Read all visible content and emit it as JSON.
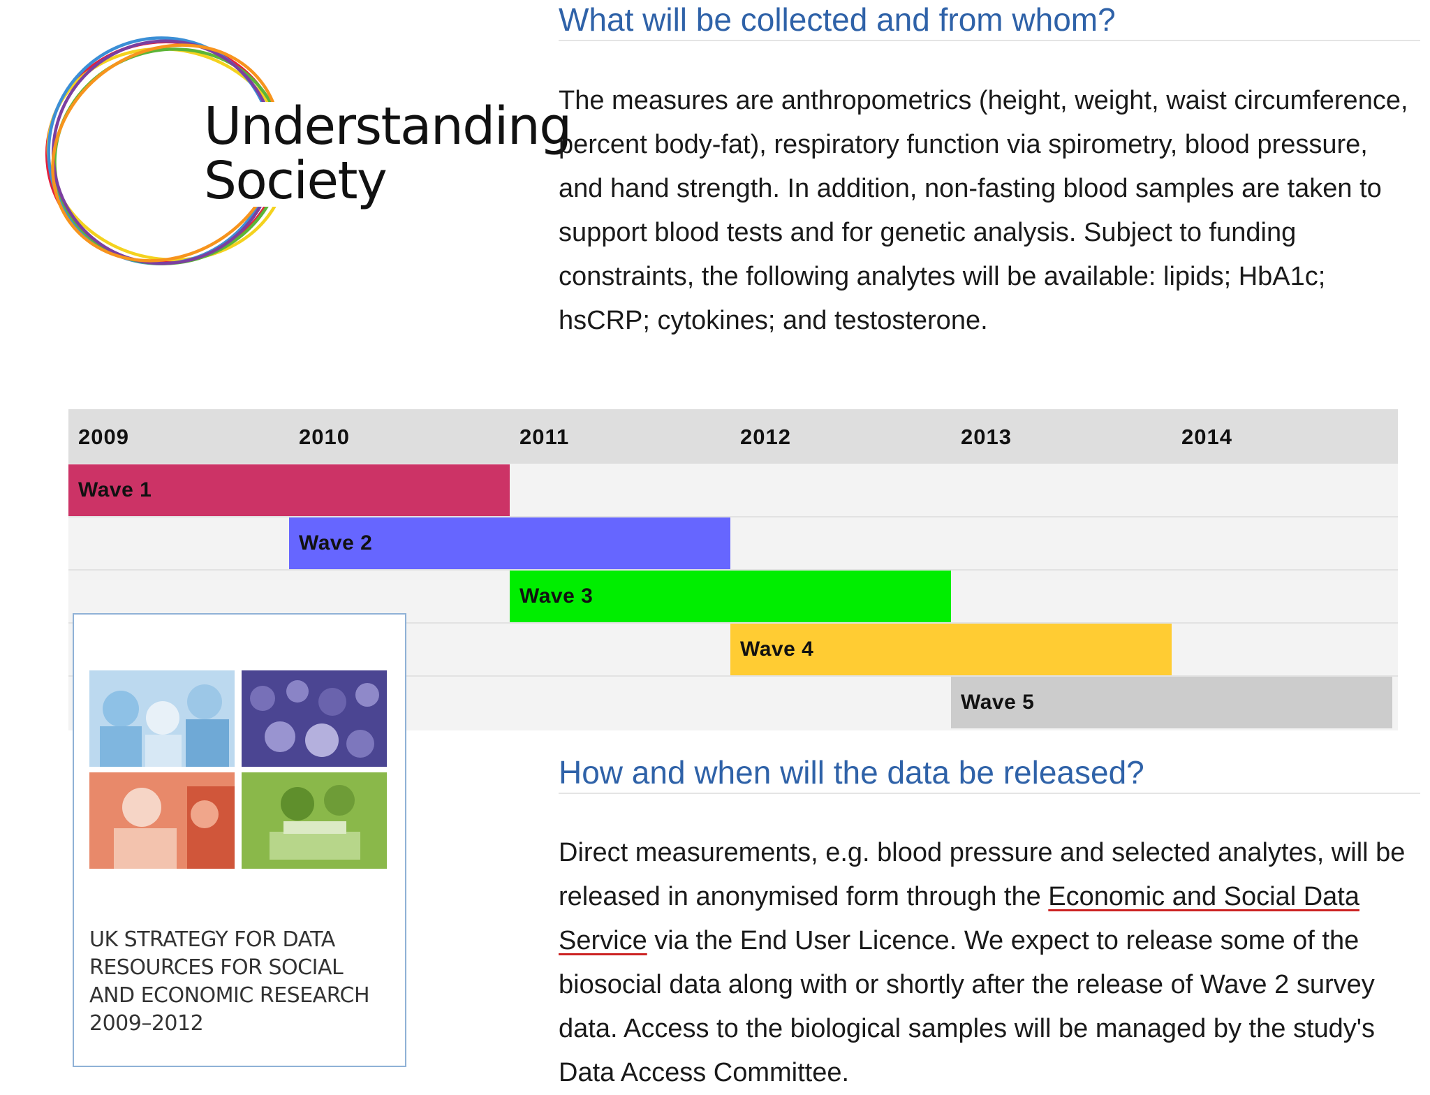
{
  "logo": {
    "line1": "Understanding",
    "line2": "Society",
    "ring_colors": [
      "#e51f3b",
      "#f4d21e",
      "#3b8fd6",
      "#5cb537",
      "#7b3fa0",
      "#f7941d"
    ]
  },
  "section1": {
    "heading": "What will be collected and from whom?",
    "paragraph": "The measures are anthropometrics (height, weight, waist circumference, percent body-fat), respiratory function via spirometry, blood pressure, and hand strength. In addition, non-fasting blood samples are taken to support blood tests and for genetic analysis. Subject to funding constraints, the following analytes will be available: lipids; HbA1c; hsCRP; cytokines; and testosterone."
  },
  "timeline": {
    "years": [
      "2009",
      "2010",
      "2011",
      "2012",
      "2013",
      "2014"
    ],
    "waves": [
      {
        "label": "Wave 1",
        "start": 2009,
        "end": 2011,
        "color": "#cc3366"
      },
      {
        "label": "Wave 2",
        "start": 2010,
        "end": 2012,
        "color": "#6666ff"
      },
      {
        "label": "Wave 3",
        "start": 2011,
        "end": 2013,
        "color": "#00ee00"
      },
      {
        "label": "Wave 4",
        "start": 2012,
        "end": 2014,
        "color": "#ffcc33"
      },
      {
        "label": "Wave 5",
        "start": 2013,
        "end": 2015,
        "color": "#cccccc"
      }
    ]
  },
  "report": {
    "title_lines": [
      "UK STRATEGY FOR DATA",
      "RESOURCES FOR SOCIAL",
      "AND ECONOMIC RESEARCH",
      "2009–2012"
    ]
  },
  "section2": {
    "heading": "How and when will the data be released?",
    "paragraph_part1": "Direct measurements, e.g. blood pressure and selected analytes, will be released in anonymised form through the ",
    "link_text": "Economic and Social Data Service",
    "paragraph_part2": " via the End User Licence. We expect to release some of the biosocial data along with or shortly after the release of Wave 2 survey data. Access to the biological samples will be managed by the study's Data Access Committee."
  }
}
